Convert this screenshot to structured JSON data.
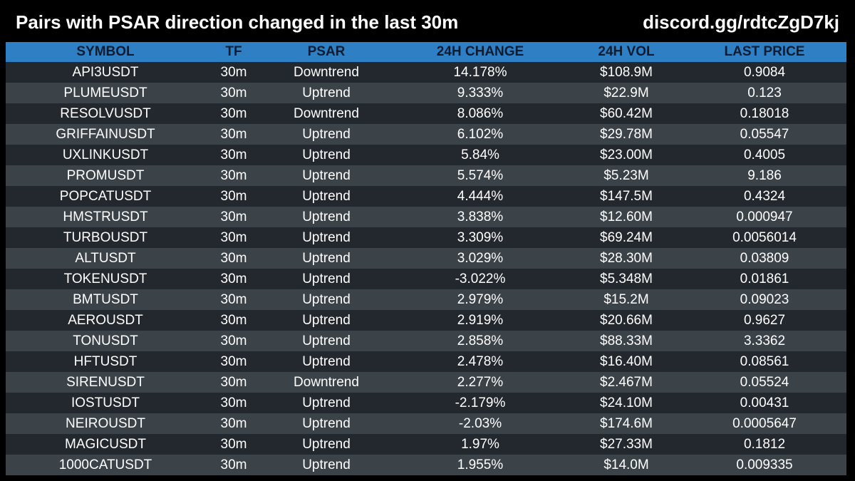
{
  "header": {
    "title": "Pairs with PSAR direction changed in the last 30m",
    "link": "discord.gg/rdtcZgD7kj"
  },
  "colors": {
    "background": "#000000",
    "header_row": "#2f7fc4",
    "row_dark": "#22282d",
    "row_light": "#3b4248",
    "text": "#ffffff",
    "header_text": "#0c1d33"
  },
  "table": {
    "columns": [
      "SYMBOL",
      "TF",
      "PSAR",
      "24H CHANGE",
      "24H VOL",
      "LAST PRICE"
    ],
    "rows": [
      {
        "symbol": "API3USDT",
        "tf": "30m",
        "psar": "Downtrend",
        "change": "14.178%",
        "vol": "$108.9M",
        "price": "0.9084"
      },
      {
        "symbol": "PLUMEUSDT",
        "tf": "30m",
        "psar": "Uptrend",
        "change": "9.333%",
        "vol": "$22.9M",
        "price": "0.123"
      },
      {
        "symbol": "RESOLVUSDT",
        "tf": "30m",
        "psar": "Downtrend",
        "change": "8.086%",
        "vol": "$60.42M",
        "price": "0.18018"
      },
      {
        "symbol": "GRIFFAINUSDT",
        "tf": "30m",
        "psar": "Uptrend",
        "change": "6.102%",
        "vol": "$29.78M",
        "price": "0.05547"
      },
      {
        "symbol": "UXLINKUSDT",
        "tf": "30m",
        "psar": "Uptrend",
        "change": "5.84%",
        "vol": "$23.00M",
        "price": "0.4005"
      },
      {
        "symbol": "PROMUSDT",
        "tf": "30m",
        "psar": "Uptrend",
        "change": "5.574%",
        "vol": "$5.23M",
        "price": "9.186"
      },
      {
        "symbol": "POPCATUSDT",
        "tf": "30m",
        "psar": "Uptrend",
        "change": "4.444%",
        "vol": "$147.5M",
        "price": "0.4324"
      },
      {
        "symbol": "HMSTRUSDT",
        "tf": "30m",
        "psar": "Uptrend",
        "change": "3.838%",
        "vol": "$12.60M",
        "price": "0.000947"
      },
      {
        "symbol": "TURBOUSDT",
        "tf": "30m",
        "psar": "Uptrend",
        "change": "3.309%",
        "vol": "$69.24M",
        "price": "0.0056014"
      },
      {
        "symbol": "ALTUSDT",
        "tf": "30m",
        "psar": "Uptrend",
        "change": "3.029%",
        "vol": "$28.30M",
        "price": "0.03809"
      },
      {
        "symbol": "TOKENUSDT",
        "tf": "30m",
        "psar": "Uptrend",
        "change": "-3.022%",
        "vol": "$5.348M",
        "price": "0.01861"
      },
      {
        "symbol": "BMTUSDT",
        "tf": "30m",
        "psar": "Uptrend",
        "change": "2.979%",
        "vol": "$15.2M",
        "price": "0.09023"
      },
      {
        "symbol": "AEROUSDT",
        "tf": "30m",
        "psar": "Uptrend",
        "change": "2.919%",
        "vol": "$20.66M",
        "price": "0.9627"
      },
      {
        "symbol": "TONUSDT",
        "tf": "30m",
        "psar": "Uptrend",
        "change": "2.858%",
        "vol": "$88.33M",
        "price": "3.3362"
      },
      {
        "symbol": "HFTUSDT",
        "tf": "30m",
        "psar": "Uptrend",
        "change": "2.478%",
        "vol": "$16.40M",
        "price": "0.08561"
      },
      {
        "symbol": "SIRENUSDT",
        "tf": "30m",
        "psar": "Downtrend",
        "change": "2.277%",
        "vol": "$2.467M",
        "price": "0.05524"
      },
      {
        "symbol": "IOSTUSDT",
        "tf": "30m",
        "psar": "Uptrend",
        "change": "-2.179%",
        "vol": "$24.10M",
        "price": "0.00431"
      },
      {
        "symbol": "NEIROUSDT",
        "tf": "30m",
        "psar": "Uptrend",
        "change": "-2.03%",
        "vol": "$174.6M",
        "price": "0.0005647"
      },
      {
        "symbol": "MAGICUSDT",
        "tf": "30m",
        "psar": "Uptrend",
        "change": "1.97%",
        "vol": "$27.33M",
        "price": "0.1812"
      },
      {
        "symbol": "1000CATUSDT",
        "tf": "30m",
        "psar": "Uptrend",
        "change": "1.955%",
        "vol": "$14.0M",
        "price": "0.009335"
      }
    ]
  }
}
